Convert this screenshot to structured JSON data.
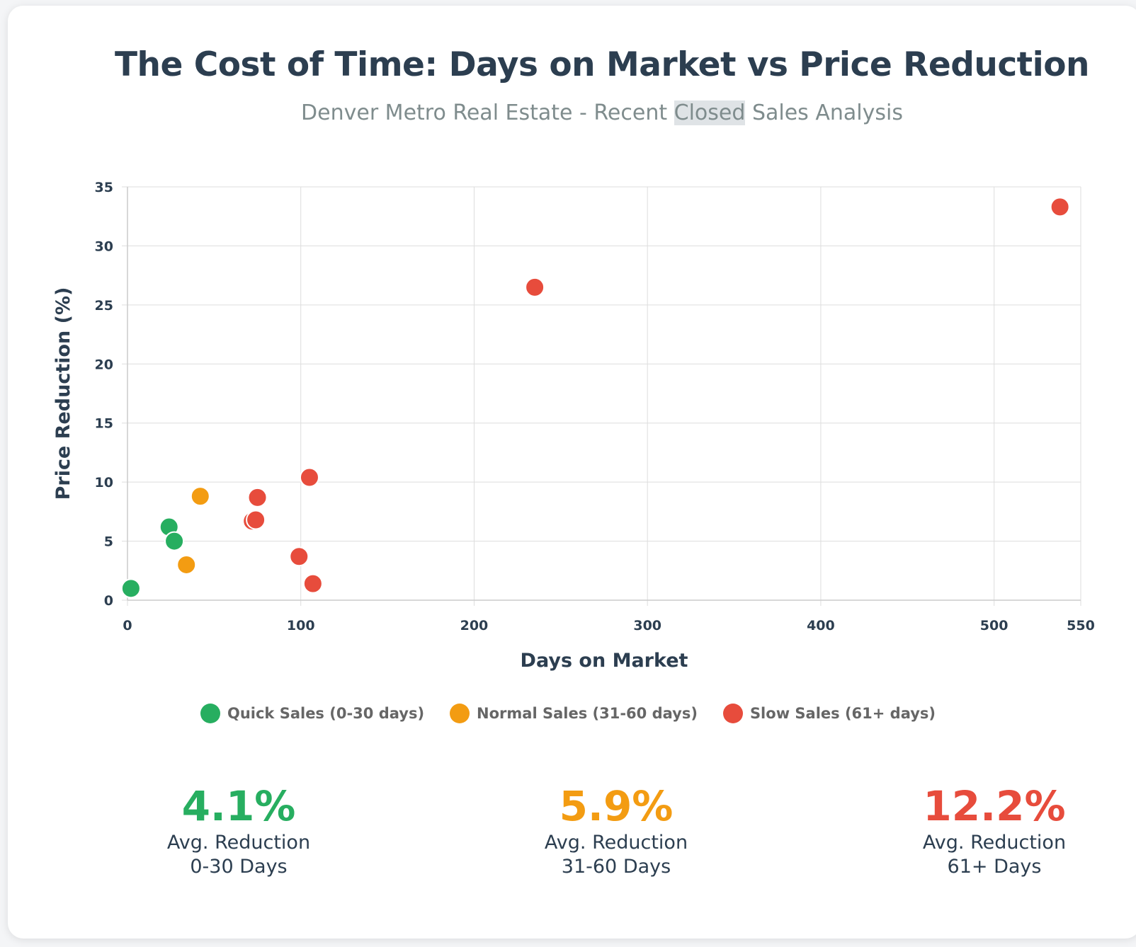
{
  "header": {
    "title": "The Cost of Time: Days on Market vs Price Reduction",
    "subtitle_before": "Denver Metro Real Estate - Recent ",
    "subtitle_highlight": "Closed",
    "subtitle_after": " Sales Analysis"
  },
  "colors": {
    "quick": "#27ae60",
    "normal": "#f39c12",
    "slow": "#e74c3c",
    "text": "#2c3e50",
    "grid": "#dddddd"
  },
  "chart_data": {
    "type": "scatter",
    "title": "The Cost of Time: Days on Market vs Price Reduction",
    "xlabel": "Days on Market",
    "ylabel": "Price Reduction (%)",
    "xlim": [
      0,
      550
    ],
    "ylim": [
      0,
      35
    ],
    "xticks": [
      0,
      100,
      200,
      300,
      400,
      500,
      550
    ],
    "yticks": [
      0,
      5,
      10,
      15,
      20,
      25,
      30,
      35
    ],
    "grid": true,
    "legend_position": "bottom",
    "series": [
      {
        "name": "Quick Sales (0-30 days)",
        "color": "#27ae60",
        "points": [
          {
            "x": 2,
            "y": 1.0
          },
          {
            "x": 24,
            "y": 6.2
          },
          {
            "x": 27,
            "y": 5.0
          }
        ]
      },
      {
        "name": "Normal Sales (31-60 days)",
        "color": "#f39c12",
        "points": [
          {
            "x": 34,
            "y": 3.0
          },
          {
            "x": 42,
            "y": 8.8
          }
        ]
      },
      {
        "name": "Slow Sales (61+ days)",
        "color": "#e74c3c",
        "points": [
          {
            "x": 72,
            "y": 6.7
          },
          {
            "x": 74,
            "y": 6.8
          },
          {
            "x": 75,
            "y": 8.7
          },
          {
            "x": 99,
            "y": 3.7
          },
          {
            "x": 105,
            "y": 10.4
          },
          {
            "x": 107,
            "y": 1.4
          },
          {
            "x": 235,
            "y": 26.5
          },
          {
            "x": 538,
            "y": 33.3
          }
        ]
      }
    ]
  },
  "legend": [
    {
      "label": "Quick Sales (0-30 days)",
      "color": "#27ae60"
    },
    {
      "label": "Normal Sales (31-60 days)",
      "color": "#f39c12"
    },
    {
      "label": "Slow Sales (61+ days)",
      "color": "#e74c3c"
    }
  ],
  "stats": [
    {
      "value": "4.1%",
      "line1": "Avg. Reduction",
      "line2": "0-30 Days",
      "color": "#27ae60"
    },
    {
      "value": "5.9%",
      "line1": "Avg. Reduction",
      "line2": "31-60 Days",
      "color": "#f39c12"
    },
    {
      "value": "12.2%",
      "line1": "Avg. Reduction",
      "line2": "61+ Days",
      "color": "#e74c3c"
    }
  ]
}
